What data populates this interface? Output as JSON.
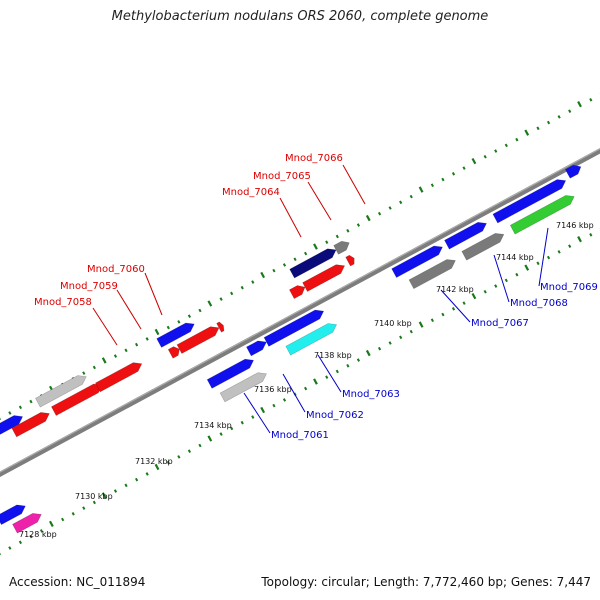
{
  "title": "Methylobacterium nodulans ORS 2060, complete genome",
  "footer": {
    "accession": "Accession: NC_011894",
    "summary": "Topology: circular; Length: 7,772,460 bp; Genes: 7,447"
  },
  "colors": {
    "backbone": "#808080",
    "tick": "#1a7a1a",
    "label_forward": "#dd0000",
    "label_reverse": "#0000cc",
    "blue": "#1010ee",
    "red": "#ee1010",
    "gray": "#7a7a7a",
    "lightgray": "#c0c0c0",
    "navy": "#0a0a7a",
    "cyan": "#22eeee",
    "green": "#33cc33",
    "magenta": "#ee22aa"
  },
  "scale_labels": [
    "7128 kbp",
    "7130 kbp",
    "7132 kbp",
    "7134 kbp",
    "7136 kbp",
    "7138 kbp",
    "7140 kbp",
    "7142 kbp",
    "7144 kbp",
    "7146 kbp"
  ],
  "forward_labels": [
    "Mnod_7058",
    "Mnod_7059",
    "Mnod_7060",
    "Mnod_7064",
    "Mnod_7065",
    "Mnod_7066"
  ],
  "reverse_labels": [
    "Mnod_7061",
    "Mnod_7062",
    "Mnod_7063",
    "Mnod_7067",
    "Mnod_7068",
    "Mnod_7069"
  ]
}
